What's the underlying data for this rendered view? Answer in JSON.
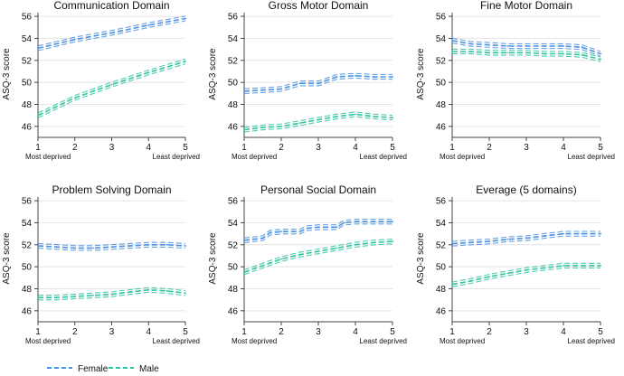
{
  "chart_data": {
    "type": "line",
    "x_ticks": [
      1,
      2,
      3,
      4,
      5
    ],
    "y_ticks": [
      46,
      48,
      50,
      52,
      54,
      56
    ],
    "ylim": [
      45,
      56.5
    ],
    "xlim": [
      1,
      5
    ],
    "ylabel": "ASQ-3 score",
    "x_label_left": "Most deprived",
    "x_label_right": "Least deprived",
    "grid": true,
    "legend": {
      "placement": "bottom-left",
      "entries": [
        {
          "name": "Female",
          "color": "#4a90e2"
        },
        {
          "name": "Male",
          "color": "#2ec4a0"
        }
      ]
    },
    "panels": [
      {
        "title": "Communication Domain",
        "series": [
          {
            "name": "Female",
            "x": [
              1,
              2,
              3,
              4,
              5
            ],
            "values": [
              53.1,
              53.9,
              54.5,
              55.2,
              55.8
            ]
          },
          {
            "name": "Male",
            "x": [
              1,
              2,
              3,
              4,
              5
            ],
            "values": [
              47.0,
              48.6,
              49.8,
              50.9,
              51.9
            ]
          }
        ]
      },
      {
        "title": "Gross Motor Domain",
        "series": [
          {
            "name": "Female",
            "x": [
              1,
              1.5,
              2,
              2.5,
              3,
              3.5,
              4,
              4.5,
              5
            ],
            "values": [
              49.2,
              49.3,
              49.4,
              49.9,
              49.9,
              50.5,
              50.6,
              50.5,
              50.5
            ]
          },
          {
            "name": "Male",
            "x": [
              1,
              1.5,
              2,
              2.5,
              3,
              3.5,
              4,
              4.5,
              5
            ],
            "values": [
              45.7,
              45.9,
              46.0,
              46.3,
              46.6,
              46.9,
              47.1,
              46.9,
              46.8
            ]
          }
        ]
      },
      {
        "title": "Fine Motor Domain",
        "series": [
          {
            "name": "Female",
            "x": [
              1,
              1.5,
              2,
              2.5,
              3,
              3.5,
              4,
              4.5,
              5
            ],
            "values": [
              53.8,
              53.5,
              53.4,
              53.3,
              53.3,
              53.3,
              53.3,
              53.2,
              52.6
            ]
          },
          {
            "name": "Male",
            "x": [
              1,
              1.5,
              2,
              2.5,
              3,
              3.5,
              4,
              4.5,
              5
            ],
            "values": [
              52.8,
              52.8,
              52.7,
              52.7,
              52.7,
              52.6,
              52.6,
              52.5,
              52.1
            ]
          }
        ]
      },
      {
        "title": "Problem Solving Domain",
        "series": [
          {
            "name": "Female",
            "x": [
              1,
              1.5,
              2,
              2.5,
              3,
              3.5,
              4,
              4.5,
              5
            ],
            "values": [
              51.9,
              51.8,
              51.7,
              51.7,
              51.8,
              51.9,
              52.0,
              52.0,
              51.9
            ]
          },
          {
            "name": "Male",
            "x": [
              1,
              1.5,
              2,
              2.5,
              3,
              3.5,
              4,
              4.5,
              5
            ],
            "values": [
              47.2,
              47.2,
              47.3,
              47.4,
              47.5,
              47.7,
              47.9,
              47.8,
              47.6
            ]
          }
        ]
      },
      {
        "title": "Personal Social Domain",
        "series": [
          {
            "name": "Female",
            "x": [
              1,
              1.5,
              1.7,
              2,
              2.5,
              2.7,
              3,
              3.5,
              3.7,
              4,
              4.5,
              5
            ],
            "values": [
              52.4,
              52.6,
              53.1,
              53.2,
              53.2,
              53.5,
              53.6,
              53.6,
              54.0,
              54.1,
              54.1,
              54.1
            ]
          },
          {
            "name": "Male",
            "x": [
              1,
              1.5,
              2,
              2.5,
              3,
              3.5,
              4,
              4.5,
              5
            ],
            "values": [
              49.5,
              50.1,
              50.7,
              51.1,
              51.4,
              51.7,
              52.0,
              52.2,
              52.3
            ]
          }
        ]
      },
      {
        "title": "Everage (5 domains)",
        "series": [
          {
            "name": "Female",
            "x": [
              1,
              1.5,
              2,
              2.5,
              3,
              3.5,
              4,
              4.5,
              5
            ],
            "values": [
              52.1,
              52.2,
              52.3,
              52.5,
              52.6,
              52.8,
              53.0,
              53.0,
              53.0
            ]
          },
          {
            "name": "Male",
            "x": [
              1,
              1.5,
              2,
              2.5,
              3,
              3.5,
              4,
              4.5,
              5
            ],
            "values": [
              48.4,
              48.7,
              49.1,
              49.4,
              49.7,
              49.9,
              50.1,
              50.1,
              50.1
            ]
          }
        ]
      }
    ]
  }
}
